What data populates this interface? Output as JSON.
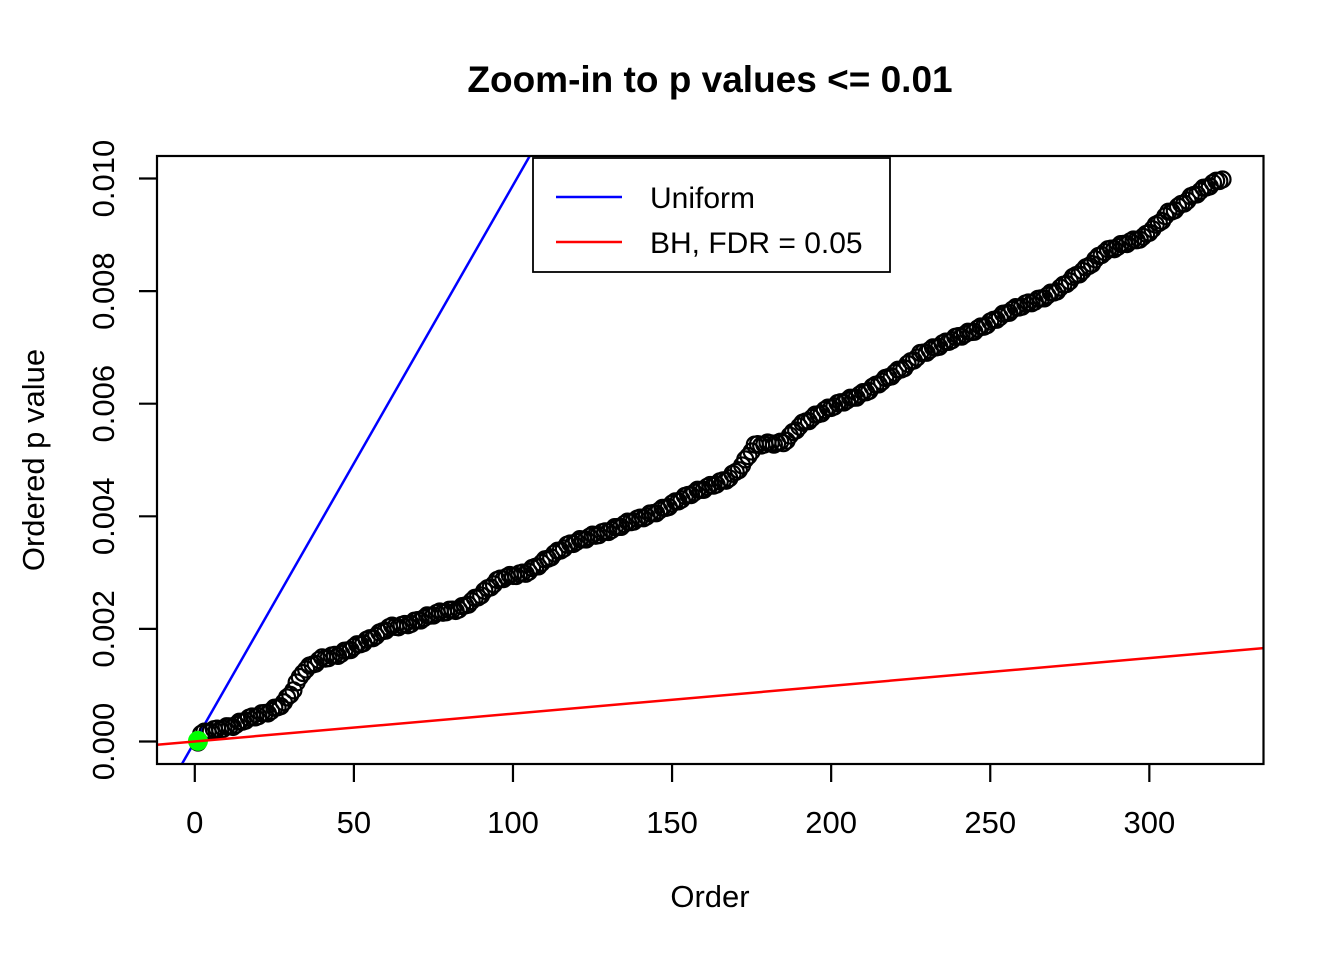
{
  "chart_data": {
    "type": "scatter",
    "title": "Zoom-in to p values <= 0.01",
    "xlabel": "Order",
    "ylabel": "Ordered p value",
    "xlim": [
      -11.88,
      335.88
    ],
    "ylim": [
      -0.0004,
      0.0104
    ],
    "grid": false,
    "axes": {
      "x": {
        "label": "Order",
        "ticks": [
          0,
          50,
          100,
          150,
          200,
          250,
          300
        ],
        "tick_labels": [
          "0",
          "50",
          "100",
          "150",
          "200",
          "250",
          "300"
        ]
      },
      "y": {
        "label": "Ordered p value",
        "ticks": [
          0,
          0.002,
          0.004,
          0.006,
          0.008,
          0.01
        ],
        "tick_labels": [
          "0.000",
          "0.002",
          "0.004",
          "0.006",
          "0.008",
          "0.010"
        ]
      }
    },
    "series_points": {
      "name": "ordered-p-values",
      "marker": "open-circle",
      "color": "#000000",
      "n": 323,
      "anchors": [
        [
          1,
          1e-05
        ],
        [
          2,
          0.00014
        ],
        [
          4,
          0.0002
        ],
        [
          7,
          0.00023
        ],
        [
          10,
          0.00025
        ],
        [
          13,
          0.00028
        ],
        [
          16,
          0.00037
        ],
        [
          20,
          0.00046
        ],
        [
          24,
          0.00056
        ],
        [
          28,
          0.0007
        ],
        [
          31,
          0.00092
        ],
        [
          34,
          0.00122
        ],
        [
          37,
          0.00135
        ],
        [
          40,
          0.00147
        ],
        [
          45,
          0.00156
        ],
        [
          50,
          0.00168
        ],
        [
          55,
          0.0018
        ],
        [
          58,
          0.0019
        ],
        [
          61,
          0.00203
        ],
        [
          67,
          0.0021
        ],
        [
          75,
          0.00224
        ],
        [
          83,
          0.00236
        ],
        [
          90,
          0.00262
        ],
        [
          96,
          0.00287
        ],
        [
          104,
          0.00301
        ],
        [
          110,
          0.00322
        ],
        [
          118,
          0.00349
        ],
        [
          125,
          0.00367
        ],
        [
          133,
          0.0038
        ],
        [
          140,
          0.00395
        ],
        [
          146,
          0.00412
        ],
        [
          152,
          0.00428
        ],
        [
          160,
          0.00448
        ],
        [
          168,
          0.0047
        ],
        [
          172,
          0.0049
        ],
        [
          176,
          0.00524
        ],
        [
          185,
          0.00532
        ],
        [
          190,
          0.00562
        ],
        [
          197,
          0.00583
        ],
        [
          204,
          0.00605
        ],
        [
          212,
          0.00625
        ],
        [
          218,
          0.00645
        ],
        [
          223,
          0.00665
        ],
        [
          228,
          0.0069
        ],
        [
          236,
          0.00707
        ],
        [
          244,
          0.00728
        ],
        [
          252,
          0.00752
        ],
        [
          259,
          0.0077
        ],
        [
          265,
          0.00785
        ],
        [
          272,
          0.00806
        ],
        [
          280,
          0.00838
        ],
        [
          286,
          0.00872
        ],
        [
          292,
          0.00885
        ],
        [
          298,
          0.00893
        ],
        [
          303,
          0.0092
        ],
        [
          306,
          0.0094
        ],
        [
          309,
          0.00951
        ],
        [
          313,
          0.00967
        ],
        [
          318,
          0.00983
        ],
        [
          323,
          0.00999
        ]
      ]
    },
    "highlight_point": {
      "name": "bh-significant-point",
      "x": 1,
      "y": 1e-05,
      "color": "#00FF00",
      "style": "filled-circle"
    },
    "lines": [
      {
        "name": "Uniform",
        "color": "#0000FF",
        "slope_per_order": 9.88e-05,
        "intercept": 0
      },
      {
        "name": "BH, FDR = 0.05",
        "color": "#FF0000",
        "slope_per_order": 4.94e-06,
        "intercept": 0
      }
    ],
    "legend": {
      "position": "top-center-inside",
      "entries": [
        {
          "label": "Uniform",
          "color": "#0000FF"
        },
        {
          "label": "BH, FDR = 0.05",
          "color": "#FF0000"
        }
      ]
    }
  }
}
